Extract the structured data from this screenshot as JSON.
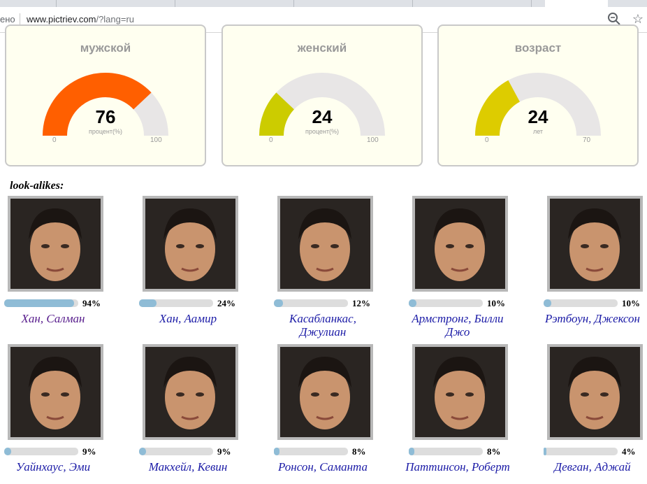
{
  "browser": {
    "security_text": "ено",
    "url_host": "www.pictriev.com",
    "url_path": "/?lang=ru",
    "zoom_icon": "zoom-icon",
    "bookmark_icon": "star-icon"
  },
  "gauges": [
    {
      "title": "мужской",
      "value": "76",
      "unit": "процент(%)",
      "min": "0",
      "max": "100",
      "fraction": 0.76,
      "color": "#ff5f00"
    },
    {
      "title": "женский",
      "value": "24",
      "unit": "процент(%)",
      "min": "0",
      "max": "100",
      "fraction": 0.24,
      "color": "#cccc00"
    },
    {
      "title": "возраст",
      "value": "24",
      "unit": "лет",
      "min": "0",
      "max": "70",
      "fraction": 0.343,
      "color": "#ddcc00"
    }
  ],
  "lookalikes_title": "look-alikes:",
  "people": [
    {
      "percent": "94%",
      "fraction": 0.94,
      "name": "Хан, Салман",
      "visited": true
    },
    {
      "percent": "24%",
      "fraction": 0.24,
      "name": "Хан, Аамир",
      "visited": false
    },
    {
      "percent": "12%",
      "fraction": 0.12,
      "name": "Касабланкас, Джулиан",
      "visited": false
    },
    {
      "percent": "10%",
      "fraction": 0.1,
      "name": "Армстронг, Билли Джо",
      "visited": false
    },
    {
      "percent": "10%",
      "fraction": 0.1,
      "name": "Рэтбоун, Джексон",
      "visited": false
    },
    {
      "percent": "9%",
      "fraction": 0.09,
      "name": "Уайнхаус, Эми",
      "visited": false
    },
    {
      "percent": "9%",
      "fraction": 0.09,
      "name": "Макхейл, Кевин",
      "visited": false
    },
    {
      "percent": "8%",
      "fraction": 0.08,
      "name": "Ронсон, Саманта",
      "visited": false
    },
    {
      "percent": "8%",
      "fraction": 0.08,
      "name": "Паттинсон, Роберт",
      "visited": false
    },
    {
      "percent": "4%",
      "fraction": 0.04,
      "name": "Девган, Аджай",
      "visited": false
    }
  ]
}
